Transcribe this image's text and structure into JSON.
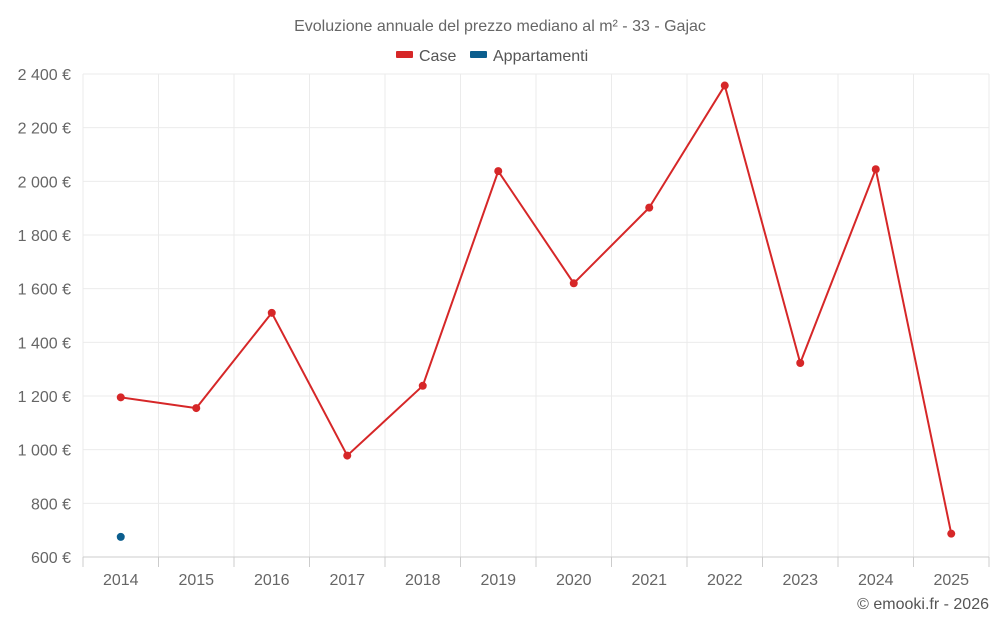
{
  "chart_data": {
    "type": "line",
    "title": "Evoluzione annuale del prezzo mediano al m² - 33 - Gajac",
    "categories": [
      "2014",
      "2015",
      "2016",
      "2017",
      "2018",
      "2019",
      "2020",
      "2021",
      "2022",
      "2023",
      "2024",
      "2025"
    ],
    "ylim": [
      600,
      2400
    ],
    "y_ticks": [
      600,
      800,
      1000,
      1200,
      1400,
      1600,
      1800,
      2000,
      2200,
      2400
    ],
    "y_tick_labels": [
      "600 €",
      "800 €",
      "1 000 €",
      "1 200 €",
      "1 400 €",
      "1 600 €",
      "1 800 €",
      "2 000 €",
      "2 200 €",
      "2 400 €"
    ],
    "legend_position": "top-center",
    "grid": true,
    "series": [
      {
        "name": "Case",
        "color": "#d62728",
        "values": [
          1195,
          1155,
          1510,
          978,
          1238,
          2038,
          1620,
          1902,
          2357,
          1323,
          2045,
          687
        ]
      },
      {
        "name": "Appartamenti",
        "color": "#0b5e8e",
        "values": [
          675,
          null,
          null,
          null,
          null,
          null,
          null,
          null,
          null,
          null,
          null,
          null
        ]
      }
    ]
  },
  "credit": "© emooki.fr - 2026"
}
